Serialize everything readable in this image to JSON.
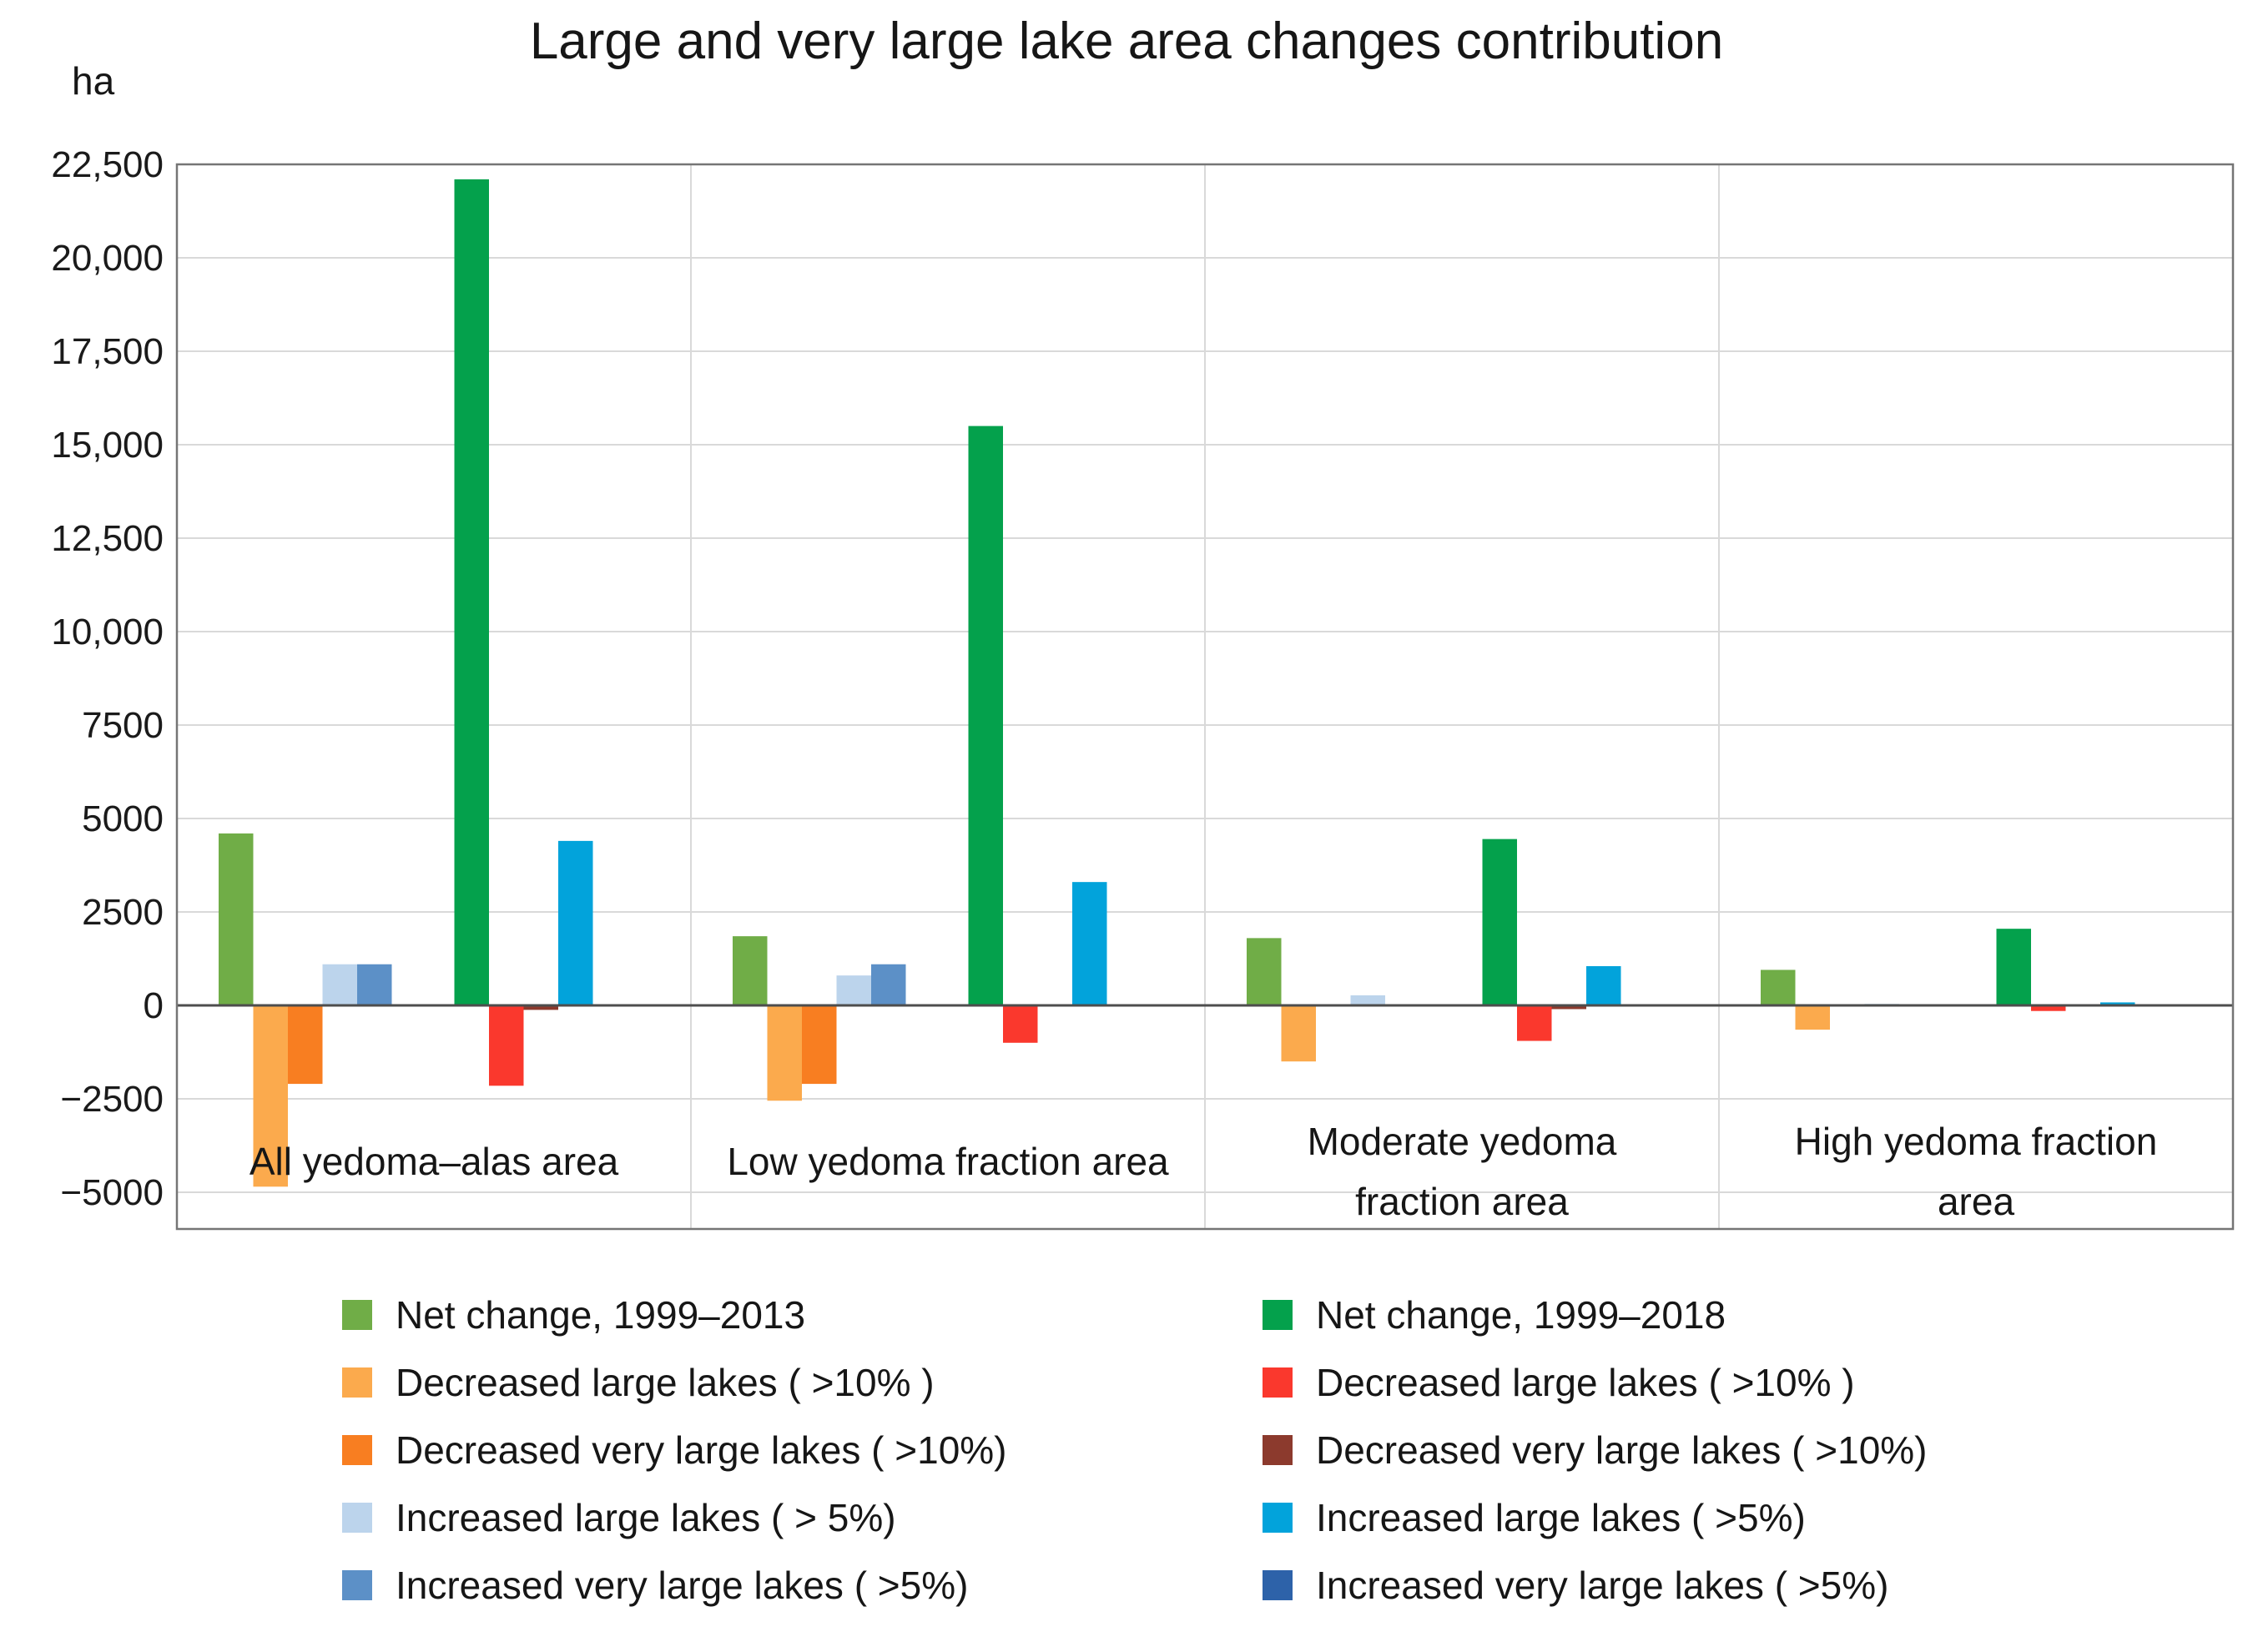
{
  "figure": {
    "title": "Large and very large lake area changes contribution",
    "y_axis_unit": "ha"
  },
  "chart_data": {
    "type": "bar",
    "title": "Large and very large lake area changes contribution",
    "ylabel": "ha",
    "ylim": [
      -5000,
      22500
    ],
    "y_tick_step": 2500,
    "grid": true,
    "legend_position": "bottom, two columns (1999–2013 series left, 1999–2018 series right)",
    "axis_colors": {
      "gridline": "#D9D9D9",
      "zero_line": "#4D4D4D",
      "border": "#757575",
      "tick_text": "#1A1A1A"
    },
    "y_ticks": [
      {
        "value": 22500,
        "label": "22,500"
      },
      {
        "value": 20000,
        "label": "20,000"
      },
      {
        "value": 17500,
        "label": "17,500"
      },
      {
        "value": 15000,
        "label": "15,000"
      },
      {
        "value": 12500,
        "label": "12,500"
      },
      {
        "value": 10000,
        "label": "10,000"
      },
      {
        "value": 7500,
        "label": "7500"
      },
      {
        "value": 5000,
        "label": "5000"
      },
      {
        "value": 2500,
        "label": "2500"
      },
      {
        "value": 0,
        "label": "0"
      },
      {
        "value": -2500,
        "label": "−2500"
      },
      {
        "value": -5000,
        "label": "−5000"
      }
    ],
    "categories": [
      "All yedoma–alas area",
      "Low yedoma fraction area",
      "Moderate yedoma fraction area",
      "High yedoma fraction area"
    ],
    "category_label_lines": [
      [
        "All yedoma–alas area"
      ],
      [
        "Low yedoma fraction area"
      ],
      [
        "Moderate yedoma",
        "fraction area"
      ],
      [
        "High yedoma fraction",
        "area"
      ]
    ],
    "series": [
      {
        "key": "net-change-2013",
        "name": "Net change, 1999–2013",
        "period": "1999–2013",
        "color": "#70AD47",
        "values": [
          4600,
          1850,
          1800,
          950
        ]
      },
      {
        "key": "decreased-large-2013",
        "name": "Decreased large lakes ( >10% )",
        "period": "1999–2013",
        "color": "#FBAA4D",
        "values": [
          -4850,
          -2550,
          -1500,
          -650
        ]
      },
      {
        "key": "decreased-very-large-2013",
        "name": "Decreased very large lakes ( >10%)",
        "period": "1999–2013",
        "color": "#F87E21",
        "values": [
          -2100,
          -2100,
          0,
          0
        ]
      },
      {
        "key": "increased-large-2013",
        "name": "Increased large lakes ( > 5%)",
        "period": "1999–2013",
        "color": "#BCD4EC",
        "values": [
          1100,
          800,
          270,
          40
        ]
      },
      {
        "key": "increased-very-large-2013",
        "name": "Increased very large lakes ( >5%)",
        "period": "1999–2013",
        "color": "#5C90C7",
        "values": [
          1100,
          1100,
          0,
          0
        ]
      },
      {
        "key": "net-change-2018",
        "name": "Net change, 1999–2018",
        "period": "1999–2018",
        "color": "#04A14C",
        "values": [
          22100,
          15500,
          4450,
          2050
        ]
      },
      {
        "key": "decreased-large-2018",
        "name": "Decreased large lakes ( >10% )",
        "period": "1999–2018",
        "color": "#FA382D",
        "values": [
          -2150,
          -1000,
          -950,
          -150
        ]
      },
      {
        "key": "decreased-very-large-2018",
        "name": "Decreased very large lakes ( >10%)",
        "period": "1999–2018",
        "color": "#8C3A2D",
        "values": [
          -120,
          0,
          -100,
          0
        ]
      },
      {
        "key": "increased-large-2018",
        "name": "Increased large lakes ( >5%)",
        "period": "1999–2018",
        "color": "#02A3DB",
        "values": [
          4400,
          3300,
          1050,
          80
        ]
      },
      {
        "key": "increased-very-large-2018",
        "name": "Increased very large lakes ( >5%)",
        "period": "1999–2018",
        "color": "#2D62A9",
        "values": [
          0,
          0,
          0,
          0
        ]
      }
    ]
  }
}
